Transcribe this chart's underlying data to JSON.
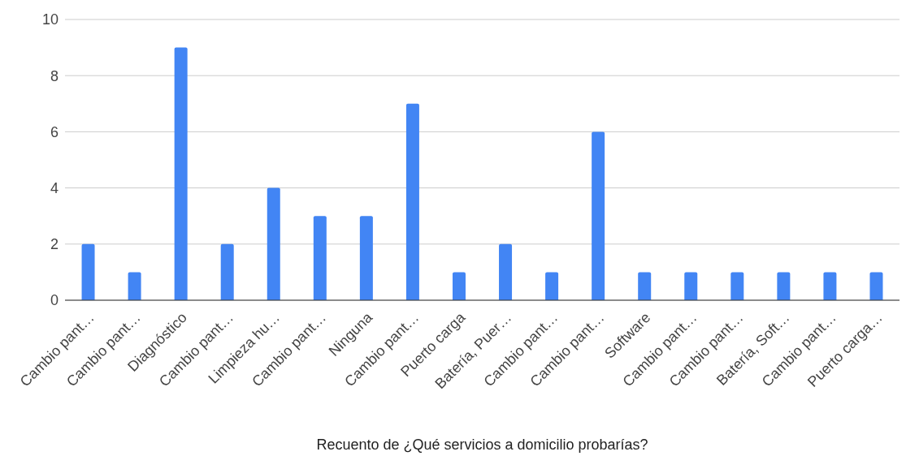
{
  "chart_data": {
    "type": "bar",
    "xlabel": "Recuento de ¿Qué servicios a domicilio probarías?",
    "categories": [
      "Cambio pant…",
      "Cambio pant…",
      "Diagnóstico",
      "Cambio pant…",
      "Limpieza hu…",
      "Cambio pant…",
      "Ninguna",
      "Cambio pant…",
      "Puerto carga",
      "Batería, Puer…",
      "Cambio pant…",
      "Cambio pant…",
      "Software",
      "Cambio pant…",
      "Cambio pant…",
      "Batería, Soft…",
      "Cambio pant…",
      "Puerto carga…"
    ],
    "values": [
      2,
      1,
      9,
      2,
      4,
      3,
      3,
      7,
      1,
      2,
      1,
      6,
      1,
      1,
      1,
      1,
      1,
      1
    ],
    "color": "#4285f4",
    "ylim": [
      0,
      10
    ],
    "yticks": [
      0,
      2,
      4,
      6,
      8,
      10
    ],
    "grid": "y"
  }
}
